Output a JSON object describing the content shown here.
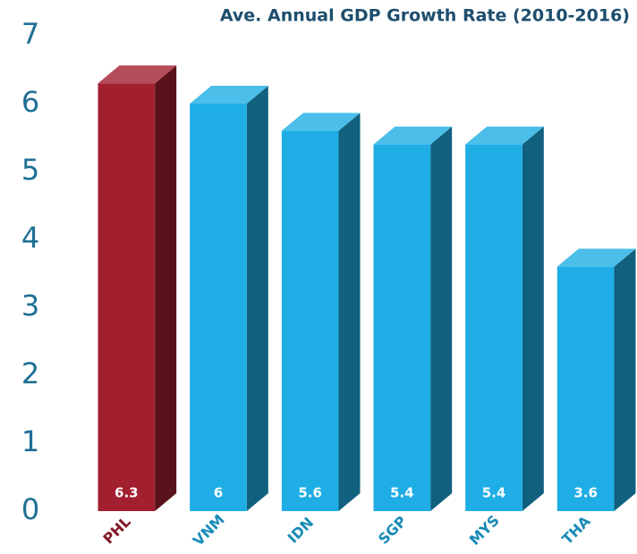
{
  "chart_data": {
    "type": "bar3d",
    "title": "Ave. Annual GDP Growth Rate (2010-2016)",
    "categories": [
      "PHL",
      "VNM",
      "IDN",
      "SGP",
      "MYS",
      "THA"
    ],
    "values": [
      6.3,
      6,
      5.6,
      5.4,
      5.4,
      3.6
    ],
    "colors": [
      "#a21f2f",
      "#1eaee5",
      "#1eaee5",
      "#1eaee5",
      "#1eaee5",
      "#1eaee5"
    ],
    "ylim": [
      0,
      7
    ],
    "yticks": [
      0,
      1,
      2,
      3,
      4,
      5,
      6,
      7
    ],
    "grid": false
  }
}
